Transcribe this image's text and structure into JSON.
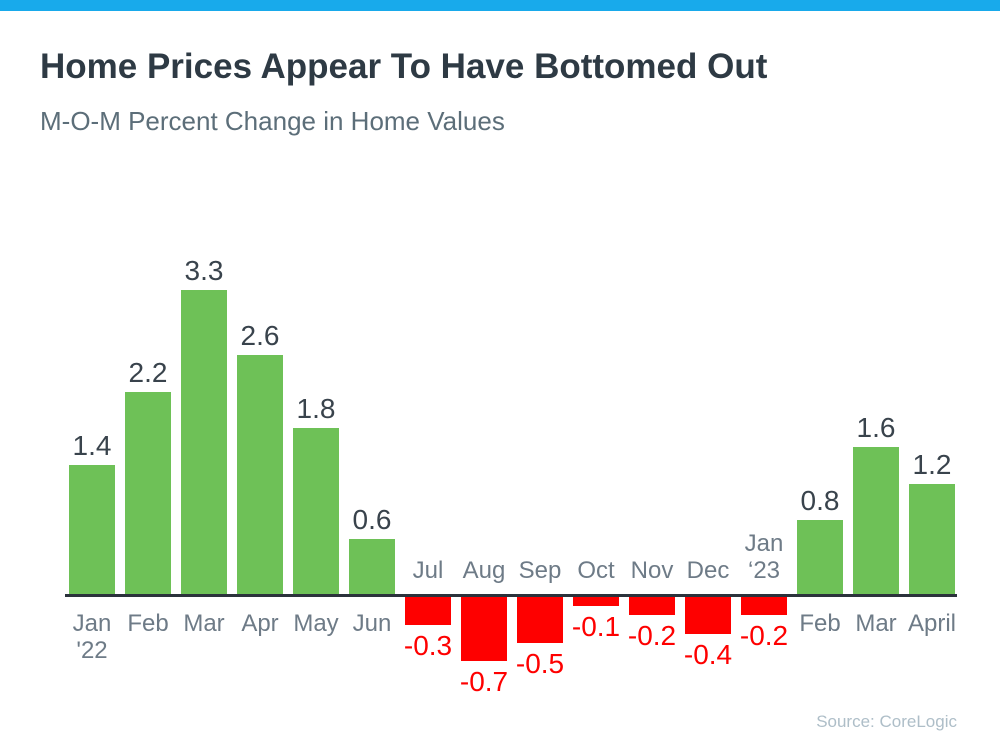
{
  "page": {
    "title": "Home Prices Appear To Have Bottomed Out",
    "subtitle": "M-O-M Percent Change in Home Values",
    "source": "Source: CoreLogic"
  },
  "colors": {
    "top_bar": "#18AAEB",
    "positive_bar": "#6EC157",
    "negative_bar": "#FE0000",
    "title_text": "#2E3A44",
    "subtitle_text": "#5C6E79",
    "month_label": "#6E7B87",
    "value_label": "#39434C",
    "negative_value_label": "#FE0000",
    "axis_line": "#2B323B",
    "source_text": "#AEBEC8"
  },
  "chart_data": {
    "type": "bar",
    "title": "Home Prices Appear To Have Bottomed Out",
    "subtitle": "M-O-M Percent Change in Home Values",
    "source": "Source: CoreLogic",
    "categories": [
      "Jan '22",
      "Feb",
      "Mar",
      "Apr",
      "May",
      "Jun",
      "Jul",
      "Aug",
      "Sep",
      "Oct",
      "Nov",
      "Dec",
      "Jan '23",
      "Feb",
      "Mar",
      "April"
    ],
    "category_lines": [
      [
        "Jan",
        "'22"
      ],
      [
        "Feb"
      ],
      [
        "Mar"
      ],
      [
        "Apr"
      ],
      [
        "May"
      ],
      [
        "Jun"
      ],
      [
        "Jul"
      ],
      [
        "Aug"
      ],
      [
        "Sep"
      ],
      [
        "Oct"
      ],
      [
        "Nov"
      ],
      [
        "Dec"
      ],
      [
        "Jan",
        "‘23"
      ],
      [
        "Feb"
      ],
      [
        "Mar"
      ],
      [
        "April"
      ]
    ],
    "values": [
      1.4,
      2.2,
      3.3,
      2.6,
      1.8,
      0.6,
      -0.3,
      -0.7,
      -0.5,
      -0.1,
      -0.2,
      -0.4,
      -0.2,
      0.8,
      1.6,
      1.2
    ],
    "value_labels": [
      "1.4",
      "2.2",
      "3.3",
      "2.6",
      "1.8",
      "0.6",
      "-0.3",
      "-0.7",
      "-0.5",
      "-0.1",
      "-0.2",
      "-0.4",
      "-0.2",
      "0.8",
      "1.6",
      "1.2"
    ],
    "xlabel": "",
    "ylabel": "",
    "ylim": [
      -0.9,
      3.5
    ],
    "baseline": 0,
    "grid": false,
    "legend": "none",
    "data_labels": "all bars, outside end",
    "month_label_position": "positive bars: below axis; negative bars: above axis"
  }
}
